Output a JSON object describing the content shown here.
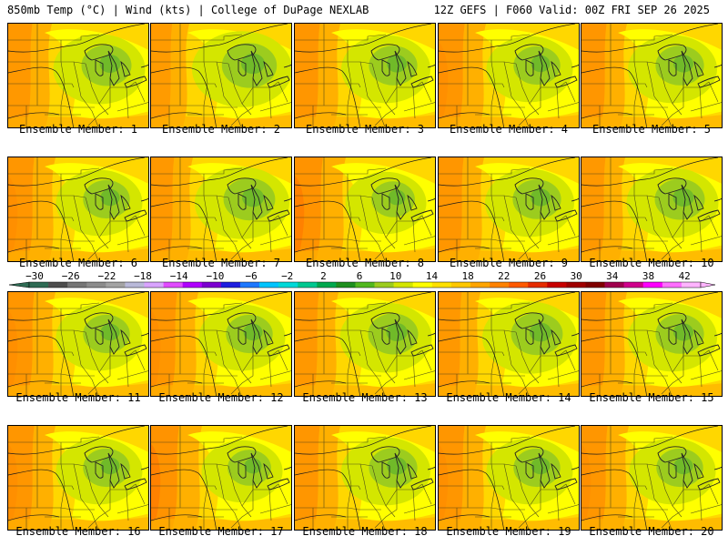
{
  "header": {
    "left": "850mb Temp (°C) | Wind (kts) | College of DuPage NEXLAB",
    "right": "12Z GEFS | F060 Valid: 00Z FRI SEP 26 2025"
  },
  "members": [
    {
      "label": "Ensemble Member: 1",
      "warm": 0.45
    },
    {
      "label": "Ensemble Member: 2",
      "warm": 0.3
    },
    {
      "label": "Ensemble Member: 3",
      "warm": 0.5
    },
    {
      "label": "Ensemble Member: 4",
      "warm": 0.55
    },
    {
      "label": "Ensemble Member: 5",
      "warm": 0.5
    },
    {
      "label": "Ensemble Member: 6",
      "warm": 0.55
    },
    {
      "label": "Ensemble Member: 7",
      "warm": 0.4
    },
    {
      "label": "Ensemble Member: 8",
      "warm": 0.65
    },
    {
      "label": "Ensemble Member: 9",
      "warm": 0.5
    },
    {
      "label": "Ensemble Member: 10",
      "warm": 0.45
    },
    {
      "label": "Ensemble Member: 11",
      "warm": 0.55
    },
    {
      "label": "Ensemble Member: 12",
      "warm": 0.55
    },
    {
      "label": "Ensemble Member: 13",
      "warm": 0.45
    },
    {
      "label": "Ensemble Member: 14",
      "warm": 0.4
    },
    {
      "label": "Ensemble Member: 15",
      "warm": 0.5
    },
    {
      "label": "Ensemble Member: 16",
      "warm": 0.55
    },
    {
      "label": "Ensemble Member: 17",
      "warm": 0.65
    },
    {
      "label": "Ensemble Member: 18",
      "warm": 0.5
    },
    {
      "label": "Ensemble Member: 19",
      "warm": 0.55
    },
    {
      "label": "Ensemble Member: 20",
      "warm": 0.55
    }
  ],
  "colorbar": {
    "unit": "°C",
    "labels": [
      "−30",
      "−26",
      "−22",
      "−18",
      "−14",
      "−10",
      "−6",
      "−2",
      "2",
      "6",
      "10",
      "14",
      "18",
      "22",
      "26",
      "30",
      "34",
      "38",
      "42"
    ],
    "colors": [
      "#2e6b54",
      "#4d4d4d",
      "#767676",
      "#8c8c8c",
      "#a3a3a3",
      "#b9b9d9",
      "#d9a3ff",
      "#e14bff",
      "#b000ff",
      "#7c00d1",
      "#1e1ee0",
      "#1e78ff",
      "#00c4ff",
      "#00d9d9",
      "#00c890",
      "#00a84e",
      "#1e8f1e",
      "#52b81e",
      "#9ccc1e",
      "#d4e600",
      "#ffff00",
      "#ffe100",
      "#ffc800",
      "#ffa500",
      "#ff8200",
      "#ff5a00",
      "#e62d00",
      "#c80000",
      "#a00000",
      "#800000",
      "#a0004e",
      "#d0008c",
      "#ff00ff",
      "#ff6eff",
      "#ffb4ff"
    ]
  },
  "palette": {
    "green_dark": "#6bb82a",
    "green": "#9ccc1e",
    "yellow_green": "#d4e600",
    "yellow": "#ffff00",
    "gold": "#ffd700",
    "amber": "#ffb000",
    "orange": "#ff8c00",
    "red_orange": "#ff5a00"
  }
}
